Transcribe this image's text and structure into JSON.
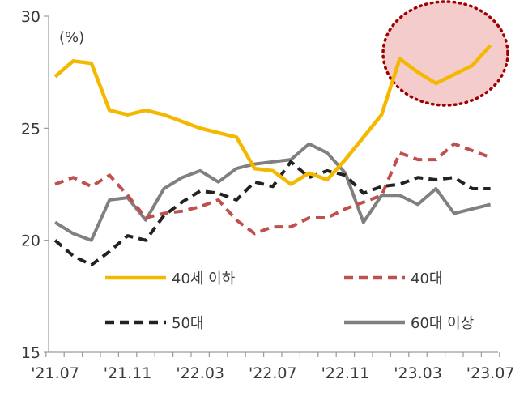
{
  "chart_data": {
    "type": "line",
    "title": "",
    "xlabel": "",
    "ylabel": "",
    "unit_label": "(%)",
    "ylim": [
      15,
      30
    ],
    "y_ticks": [
      "15",
      "20",
      "25",
      "30"
    ],
    "x_ticks": [
      {
        "index": 0,
        "label": "'21.07"
      },
      {
        "index": 4,
        "label": "'21.11"
      },
      {
        "index": 8,
        "label": "'22.03"
      },
      {
        "index": 12,
        "label": "'22.07"
      },
      {
        "index": 16,
        "label": "'22.11"
      },
      {
        "index": 20,
        "label": "'23.03"
      },
      {
        "index": 24,
        "label": "'23.07"
      }
    ],
    "categories": [
      "'21.07",
      "'21.08",
      "'21.09",
      "'21.10",
      "'21.11",
      "'21.12",
      "'22.01",
      "'22.02",
      "'22.03",
      "'22.04",
      "'22.05",
      "'22.06",
      "'22.07",
      "'22.08",
      "'22.09",
      "'22.10",
      "'22.11",
      "'22.12",
      "'23.01",
      "'23.02",
      "'23.03",
      "'23.04",
      "'23.05",
      "'23.06",
      "'23.07"
    ],
    "series": [
      {
        "name": "40세 이하",
        "color": "#F5B800",
        "style": "solid",
        "values": [
          27.3,
          28.0,
          27.9,
          25.8,
          25.6,
          25.8,
          25.6,
          25.3,
          25.0,
          24.8,
          24.6,
          23.2,
          23.1,
          22.5,
          23.0,
          22.7,
          23.6,
          24.6,
          25.6,
          28.1,
          27.5,
          27.0,
          27.4,
          27.8,
          28.7
        ]
      },
      {
        "name": "40대",
        "color": "#C0504D",
        "style": "dashed",
        "values": [
          22.5,
          22.8,
          22.4,
          22.9,
          22.0,
          21.0,
          21.2,
          21.3,
          21.5,
          21.8,
          20.9,
          20.3,
          20.6,
          20.6,
          21.0,
          21.0,
          21.4,
          21.7,
          22.0,
          23.9,
          23.6,
          23.6,
          24.3,
          24.0,
          23.7
        ]
      },
      {
        "name": "50대",
        "color": "#222222",
        "style": "dashed",
        "values": [
          20.0,
          19.3,
          18.9,
          19.5,
          20.2,
          20.0,
          21.1,
          21.7,
          22.2,
          22.1,
          21.8,
          22.6,
          22.4,
          23.5,
          22.8,
          23.1,
          22.9,
          22.1,
          22.4,
          22.5,
          22.8,
          22.7,
          22.8,
          22.3,
          22.3
        ]
      },
      {
        "name": "60대 이상",
        "color": "#808080",
        "style": "solid",
        "values": [
          20.8,
          20.3,
          20.0,
          21.8,
          21.9,
          20.9,
          22.3,
          22.8,
          23.1,
          22.6,
          23.2,
          23.4,
          23.5,
          23.6,
          24.3,
          23.9,
          23.0,
          20.8,
          22.0,
          22.0,
          21.6,
          22.3,
          21.2,
          21.4,
          21.6
        ]
      }
    ],
    "legend": "inside-lower",
    "grid": false,
    "highlight": {
      "shape": "dotted-circle",
      "around": "'23.03–'23.07 peak of 40세 이하"
    }
  }
}
